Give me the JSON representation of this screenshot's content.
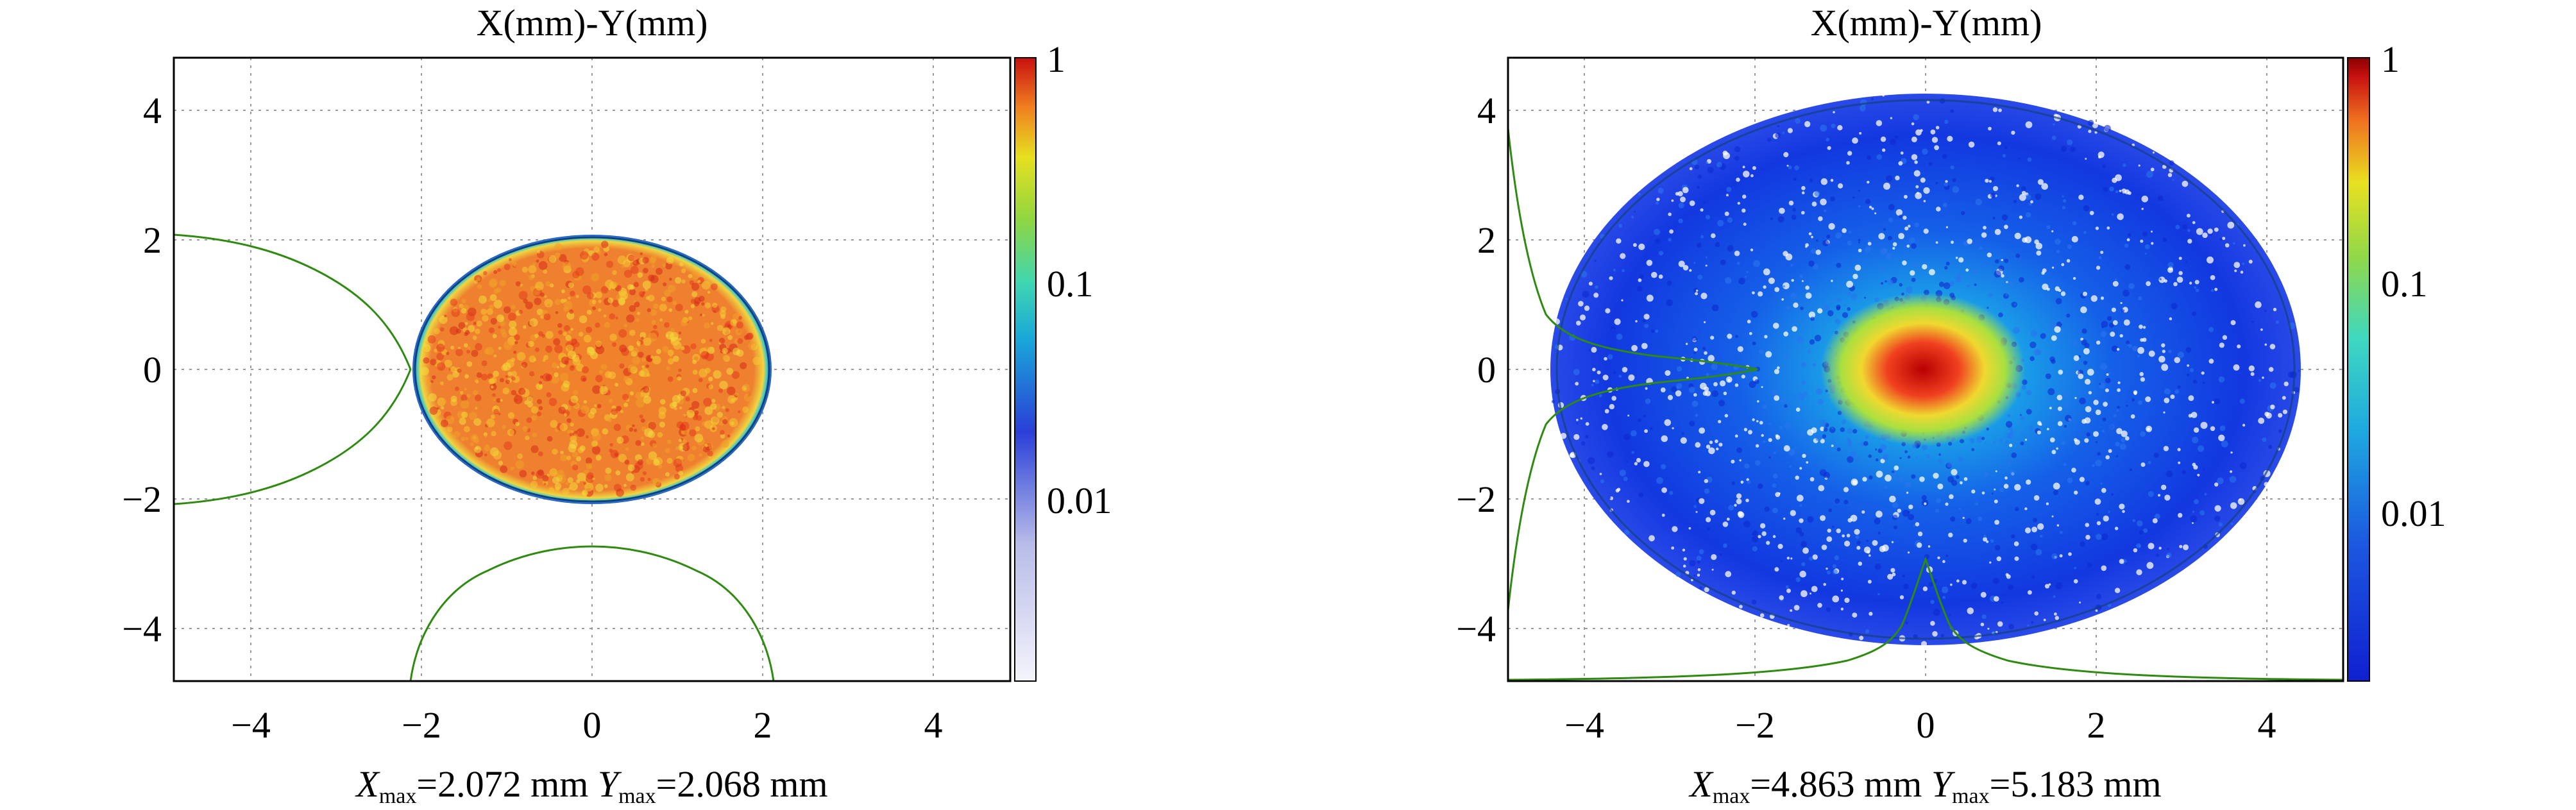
{
  "chart_data": [
    {
      "type": "heatmap",
      "title": "X(mm)-Y(mm)",
      "xlim": [
        -4.9,
        4.9
      ],
      "ylim": [
        -4.9,
        4.9
      ],
      "xticks": [
        -4,
        -2,
        0,
        2,
        4
      ],
      "yticks": [
        -4,
        -2,
        0,
        2,
        4
      ],
      "grid": true,
      "colorbar": {
        "scale": "log",
        "range": [
          0.002,
          1
        ],
        "ticks": [
          1,
          0.1,
          0.01
        ],
        "tick_labels": [
          "1",
          "0.1",
          "0.01"
        ],
        "colormap": "white-blue-cyan-green-yellow-red"
      },
      "distribution": {
        "shape": "uniform-disk",
        "radius_mm": 2.072
      },
      "caption": {
        "x_symbol": "X",
        "x_sub": "max",
        "x_text": "=2.072 mm ",
        "y_symbol": "Y",
        "y_sub": "max",
        "y_text": "=2.068 mm"
      },
      "xmax_mm": 2.072,
      "ymax_mm": 2.068
    },
    {
      "type": "heatmap",
      "title": "X(mm)-Y(mm)",
      "xlim": [
        -4.9,
        4.9
      ],
      "ylim": [
        -4.9,
        4.9
      ],
      "xticks": [
        -4,
        -2,
        0,
        2,
        4
      ],
      "yticks": [
        -4,
        -2,
        0,
        2,
        4
      ],
      "grid": true,
      "colorbar": {
        "scale": "log",
        "range": [
          0.002,
          1
        ],
        "ticks": [
          1,
          0.1,
          0.01
        ],
        "tick_labels": [
          "1",
          "0.1",
          "0.01"
        ],
        "colormap": "blue-cyan-green-yellow-red-darkred"
      },
      "distribution": {
        "shape": "halo-with-dense-core",
        "radius_mm": 4.3
      },
      "caption": {
        "x_symbol": "X",
        "x_sub": "max",
        "x_text": "=4.863 mm ",
        "y_symbol": "Y",
        "y_sub": "max",
        "y_text": "=5.183 mm"
      },
      "xmax_mm": 4.863,
      "ymax_mm": 5.183
    }
  ]
}
